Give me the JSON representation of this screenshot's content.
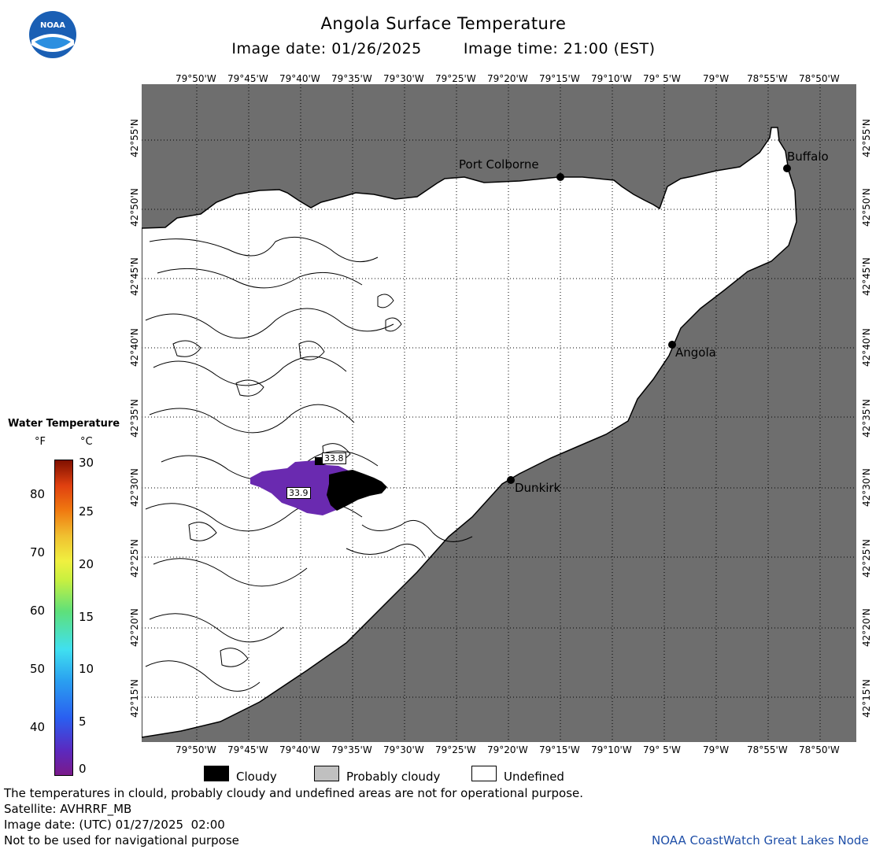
{
  "header": {
    "title": "Angola Surface Temperature",
    "image_date_label": "Image date: 01/26/2025",
    "image_time_label": "Image time: 21:00 (EST)"
  },
  "logo": {
    "text": "NOAA"
  },
  "axes": {
    "longitude_labels": [
      "79°50'W",
      "79°45'W",
      "79°40'W",
      "79°35'W",
      "79°30'W",
      "79°25'W",
      "79°20'W",
      "79°15'W",
      "79°10'W",
      "79° 5'W",
      "79°W",
      "78°55'W",
      "78°50'W"
    ],
    "latitude_labels": [
      "42°55'N",
      "42°50'N",
      "42°45'N",
      "42°40'N",
      "42°35'N",
      "42°30'N",
      "42°25'N",
      "42°20'N",
      "42°15'N"
    ]
  },
  "cities": [
    {
      "name": "Port Colborne"
    },
    {
      "name": "Buffalo"
    },
    {
      "name": "Angola"
    },
    {
      "name": "Dunkirk"
    }
  ],
  "temp_labels": [
    "33.8",
    "33.9"
  ],
  "legend": {
    "title": "Water Temperature",
    "unit_f": "°F",
    "unit_c": "°C",
    "f_ticks": [
      "80",
      "70",
      "60",
      "50",
      "40"
    ],
    "c_ticks": [
      "30",
      "25",
      "20",
      "15",
      "10",
      "5",
      "0"
    ],
    "colors": [
      "#7a1a8a",
      "#5a2ac0",
      "#2a5ef0",
      "#2aa0f0",
      "#40e0f0",
      "#5ee07a",
      "#c8f040",
      "#f0f040",
      "#f0c030",
      "#f07a10",
      "#e04010",
      "#b02000",
      "#801000"
    ]
  },
  "key": {
    "cloudy": "Cloudy",
    "probably_cloudy": "Probably cloudy",
    "undefined": "Undefined"
  },
  "footer": {
    "disclaimer": "The temperatures in clould, probably cloudy and undefined areas are not for operational purpose.",
    "satellite": "Satellite: AVHRRF_MB",
    "utc_date": "Image date: (UTC) 01/27/2025  02:00",
    "navigation": "Not to be used for navigational purpose",
    "credit": "NOAA CoastWatch Great Lakes Node"
  },
  "colors": {
    "land": "#6e6e6e",
    "water": "#ffffff",
    "cold_water": "#6a2ab0",
    "cloud": "#000000"
  }
}
